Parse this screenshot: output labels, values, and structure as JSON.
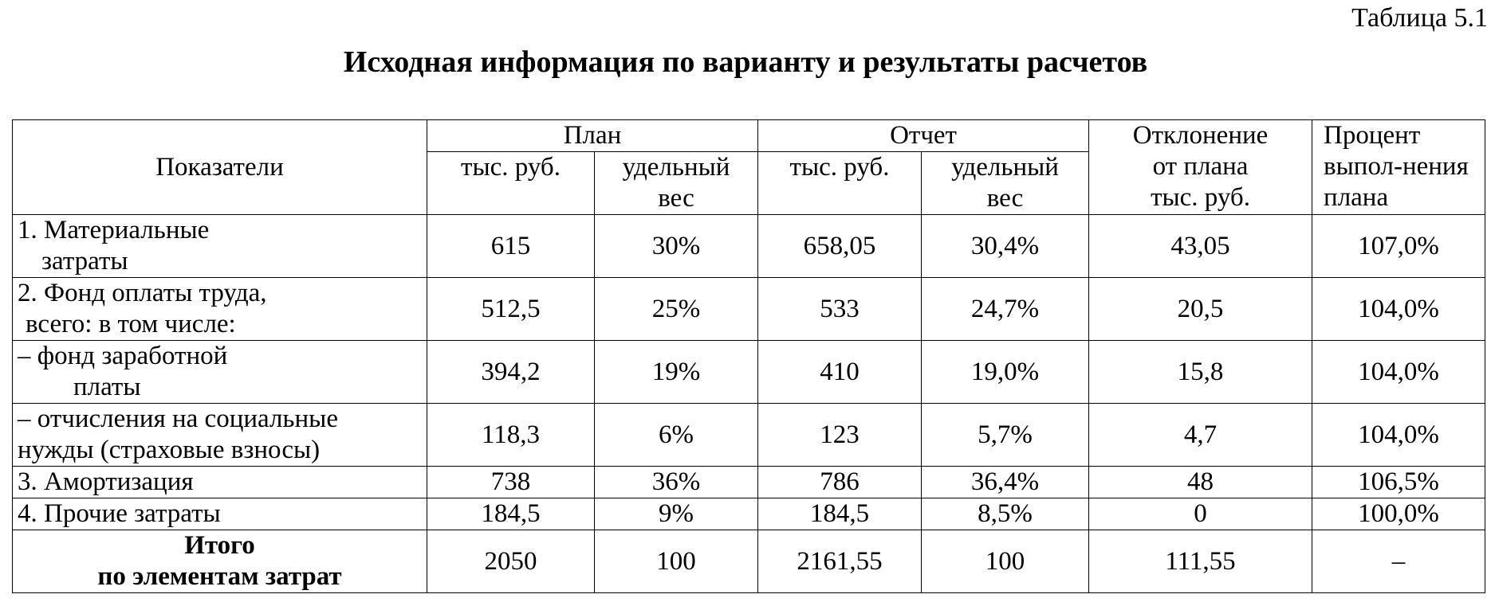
{
  "table_number": "Таблица 5.1",
  "title": "Исходная информация по варианту и результаты расчетов",
  "header": {
    "indicators": "Показатели",
    "plan": "План",
    "report": "Отчет",
    "deviation": [
      "Отклонение",
      "от плана",
      "тыс. руб."
    ],
    "percent": [
      "Процент",
      "выпол-нения",
      "плана"
    ],
    "thousand_rub": "тыс. руб.",
    "share": [
      "удельный",
      "вес"
    ]
  },
  "rows": [
    {
      "label": [
        "1. Материальные",
        "затраты"
      ],
      "plan_sum": "615",
      "plan_share": "30%",
      "report_sum": "658,05",
      "report_share": "30,4%",
      "deviation": "43,05",
      "percent": "107,0%"
    },
    {
      "label": [
        "2. Фонд оплаты труда,",
        "всего: в том числе:"
      ],
      "plan_sum": "512,5",
      "plan_share": "25%",
      "report_sum": "533",
      "report_share": "24,7%",
      "deviation": "20,5",
      "percent": "104,0%"
    },
    {
      "label": [
        "– фонд заработной",
        "платы"
      ],
      "plan_sum": "394,2",
      "plan_share": "19%",
      "report_sum": "410",
      "report_share": "19,0%",
      "deviation": "15,8",
      "percent": "104,0%"
    },
    {
      "label": [
        "– отчисления на социальные",
        "нужды (страховые взносы)"
      ],
      "plan_sum": "118,3",
      "plan_share": "6%",
      "report_sum": "123",
      "report_share": "5,7%",
      "deviation": "4,7",
      "percent": "104,0%"
    },
    {
      "label": [
        "3. Амортизация"
      ],
      "plan_sum": "738",
      "plan_share": "36%",
      "report_sum": "786",
      "report_share": "36,4%",
      "deviation": "48",
      "percent": "106,5%"
    },
    {
      "label": [
        "4. Прочие затраты"
      ],
      "plan_sum": "184,5",
      "plan_share": "9%",
      "report_sum": "184,5",
      "report_share": "8,5%",
      "deviation": "0",
      "percent": "100,0%"
    },
    {
      "label": [
        "Итого",
        "по элементам затрат"
      ],
      "plan_sum": "2050",
      "plan_share": "100",
      "report_sum": "2161,55",
      "report_share": "100",
      "deviation": "111,55",
      "percent": "–"
    }
  ]
}
